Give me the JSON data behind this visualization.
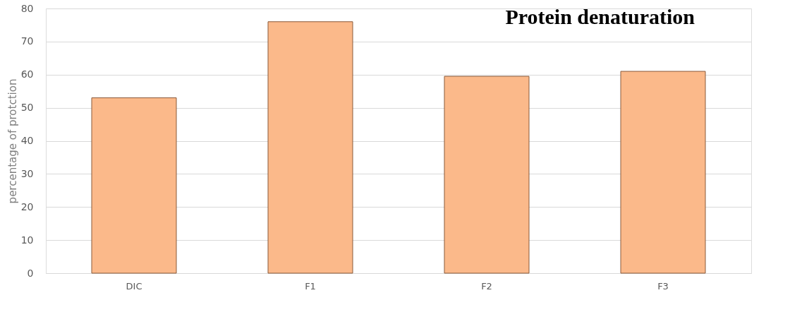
{
  "chart_data": {
    "type": "bar",
    "title": "Protein denaturation",
    "ylabel": "percentage of protction",
    "categories": [
      "DIC",
      "F1",
      "F2",
      "F3"
    ],
    "values": [
      53,
      76,
      59.5,
      61
    ],
    "color": "#fbb98a",
    "ylim": [
      0,
      80
    ],
    "yticks": [
      0,
      10,
      20,
      30,
      40,
      50,
      60,
      70,
      80
    ],
    "grid": "y"
  }
}
